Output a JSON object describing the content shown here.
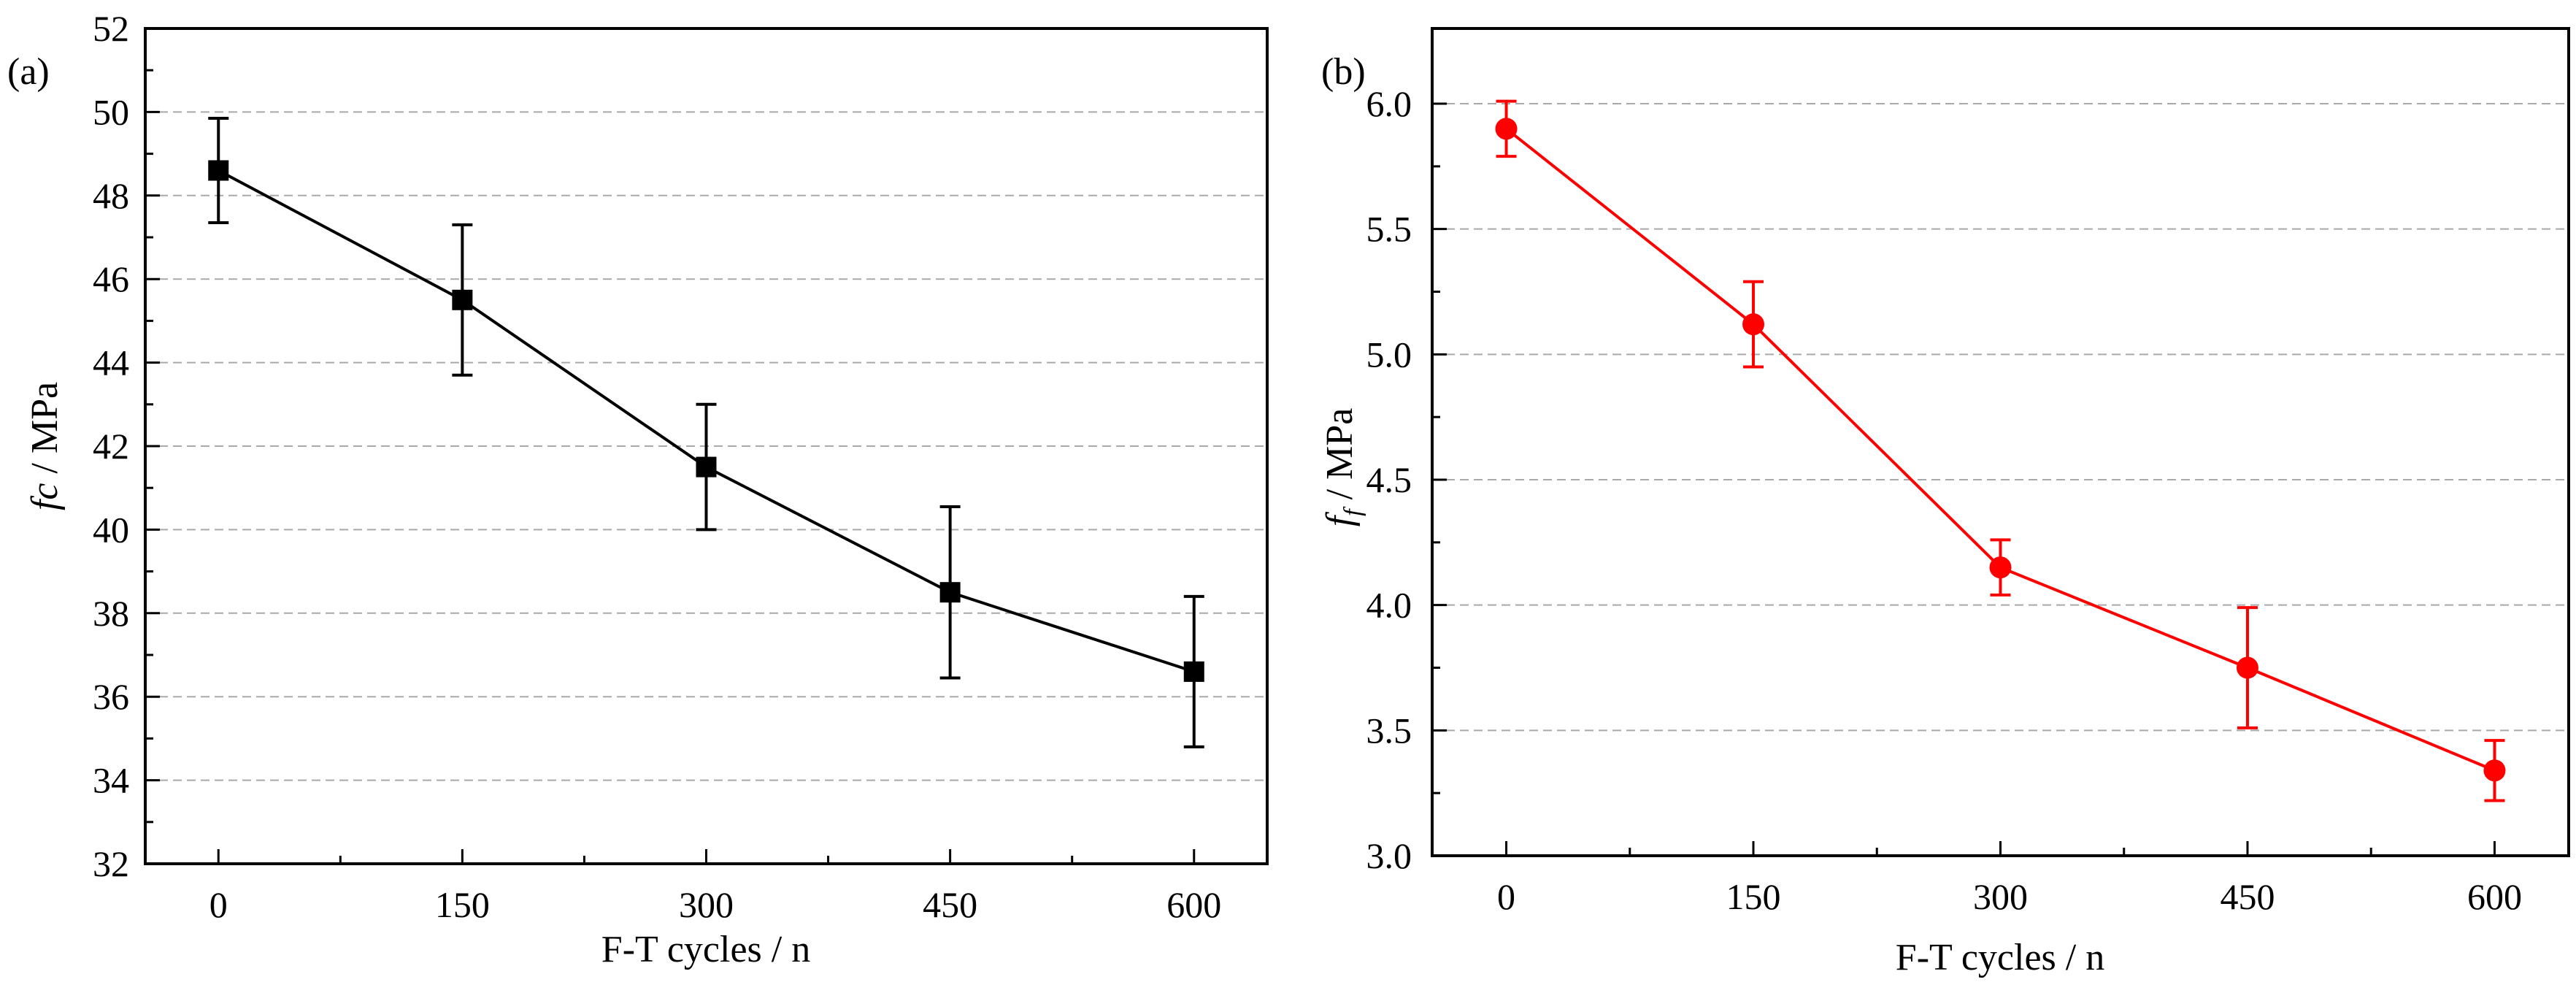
{
  "chart_data": [
    {
      "type": "line",
      "panel_label": "(a)",
      "title": "",
      "xlabel": "F-T cycles / n",
      "ylabel": {
        "symbol": "fc",
        "subscript": "",
        "unit": " / MPa"
      },
      "x": [
        0,
        150,
        300,
        450,
        600
      ],
      "x_ticks": [
        "0",
        "150",
        "300",
        "450",
        "600"
      ],
      "xlim": [
        -45,
        645
      ],
      "ylim": [
        32,
        52
      ],
      "y_ticks": [
        32,
        34,
        36,
        38,
        40,
        42,
        44,
        46,
        48,
        50,
        52
      ],
      "y_tick_labels": [
        "32",
        "34",
        "36",
        "38",
        "40",
        "42",
        "44",
        "46",
        "48",
        "50",
        "52"
      ],
      "grid": "horizontal dashed",
      "series": [
        {
          "name": "fc",
          "color": "#000000",
          "marker": "square",
          "values": [
            48.6,
            45.5,
            41.5,
            38.5,
            36.6
          ],
          "error": [
            1.25,
            1.8,
            1.5,
            2.05,
            1.8
          ]
        }
      ]
    },
    {
      "type": "line",
      "panel_label": "(b)",
      "title": "",
      "xlabel": "F-T cycles / n",
      "ylabel": {
        "symbol": "f",
        "subscript": "f",
        "unit": " / MPa"
      },
      "x": [
        0,
        150,
        300,
        450,
        600
      ],
      "x_ticks": [
        "0",
        "150",
        "300",
        "450",
        "600"
      ],
      "xlim": [
        -45,
        645
      ],
      "ylim": [
        3.0,
        6.3
      ],
      "y_ticks": [
        3.0,
        3.5,
        4.0,
        4.5,
        5.0,
        5.5,
        6.0
      ],
      "y_tick_labels": [
        "3.0",
        "3.5",
        "4.0",
        "4.5",
        "5.0",
        "5.5",
        "6.0"
      ],
      "grid": "horizontal dashed",
      "series": [
        {
          "name": "ff",
          "color": "#ff0000",
          "marker": "circle",
          "values": [
            5.9,
            5.12,
            4.15,
            3.75,
            3.34
          ],
          "error": [
            0.11,
            0.17,
            0.11,
            0.24,
            0.12
          ]
        }
      ]
    }
  ]
}
